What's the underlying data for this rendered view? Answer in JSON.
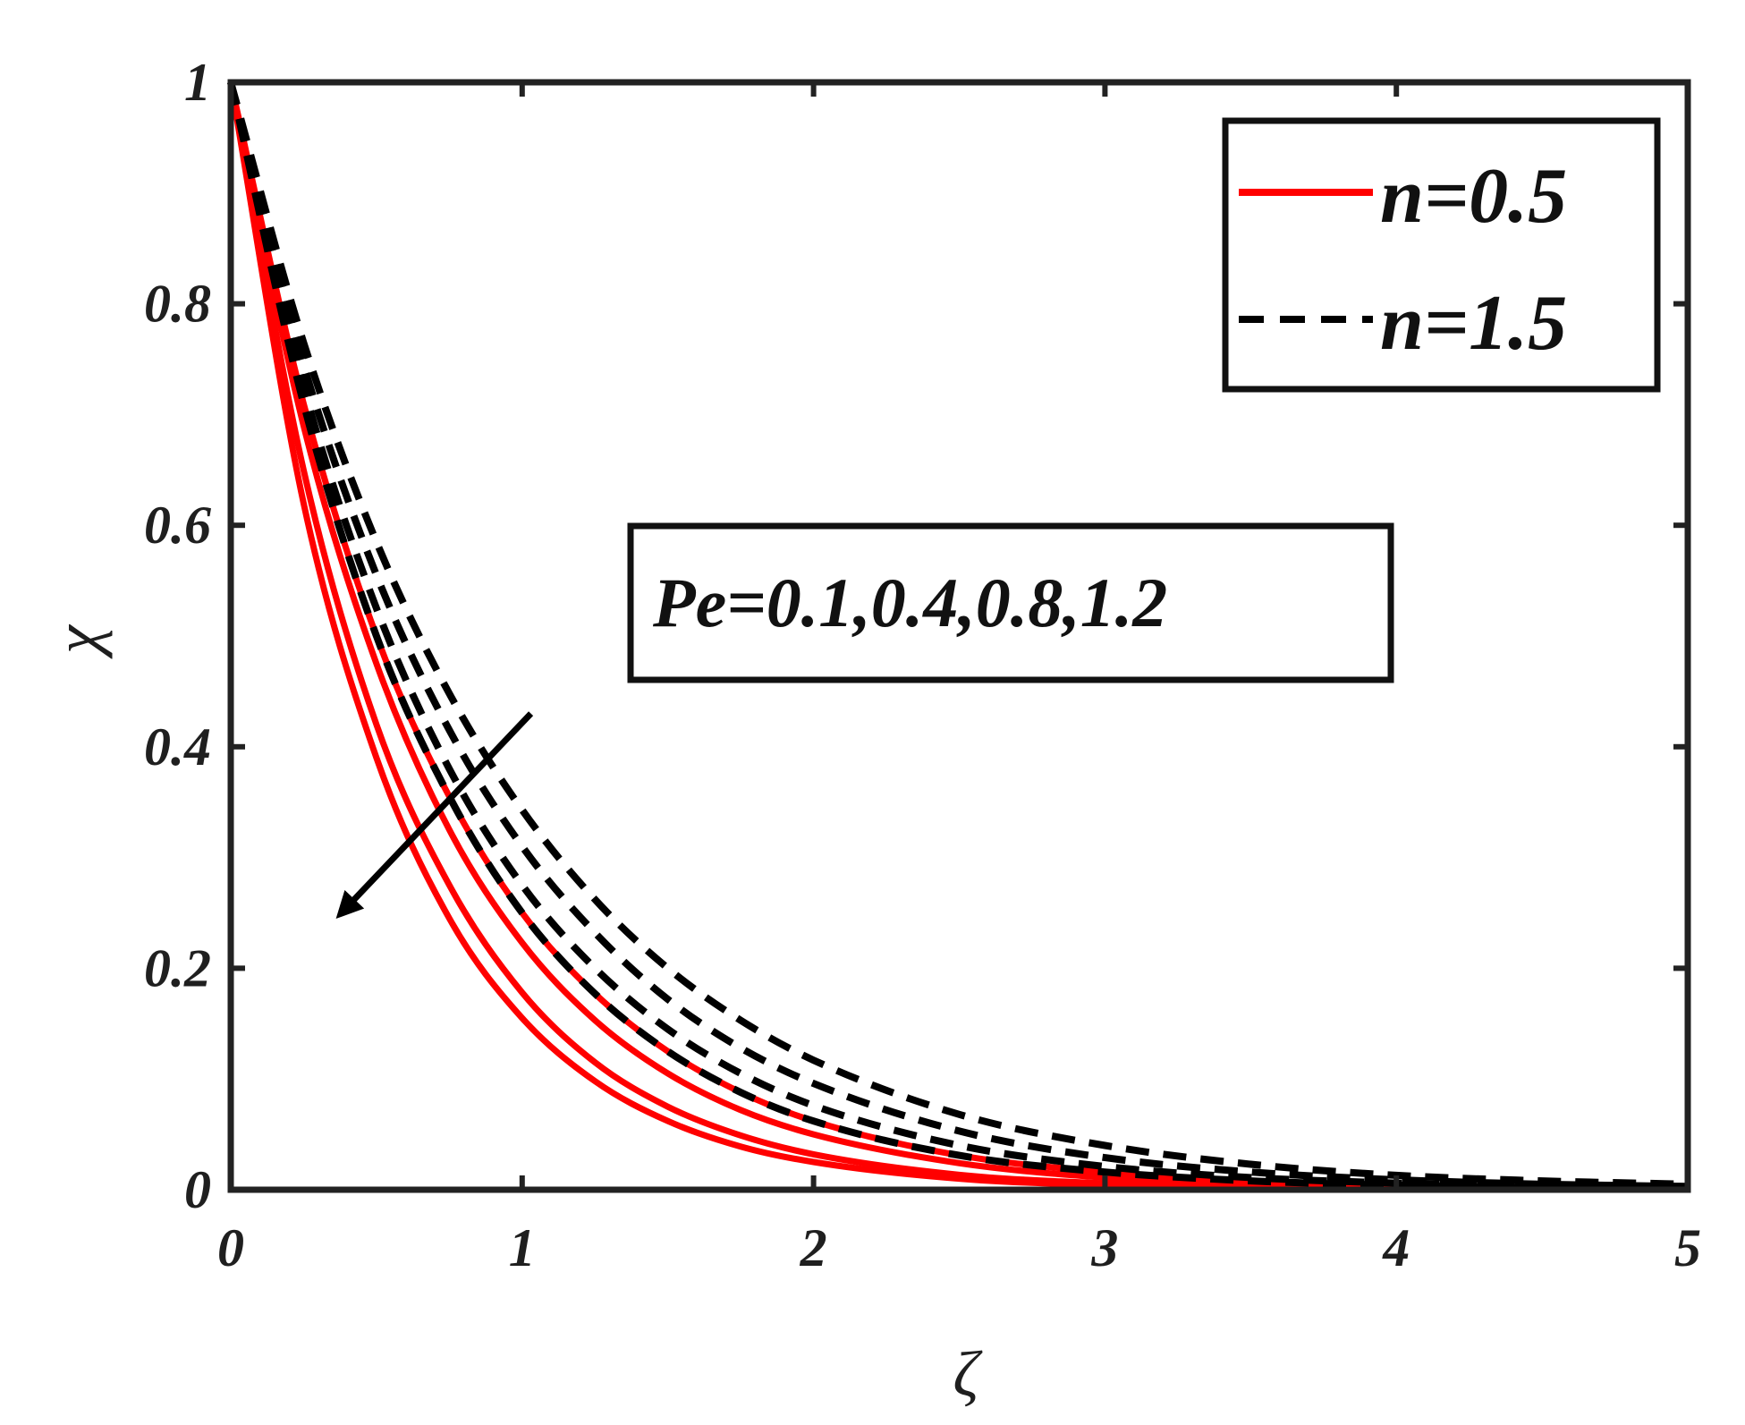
{
  "chart_data": {
    "type": "line",
    "xlabel": "ζ",
    "ylabel": "χ",
    "xlim": [
      0,
      5
    ],
    "ylim": [
      0,
      1
    ],
    "xticks": [
      "0",
      "1",
      "2",
      "3",
      "4",
      "5"
    ],
    "yticks": [
      "0",
      "0.2",
      "0.4",
      "0.6",
      "0.8",
      "1"
    ],
    "grid": false,
    "legend_position": "top-right",
    "legend": [
      {
        "name": "n=0.5",
        "color": "#ff0000",
        "style": "solid"
      },
      {
        "name": "n=1.5",
        "color": "#000000",
        "style": "dashed"
      }
    ],
    "annotation": {
      "text": "Pe=0.1,0.4,0.8,1.2",
      "arrow_from": [
        1.03,
        0.43
      ],
      "arrow_to": [
        0.38,
        0.25
      ]
    },
    "x": [
      0,
      0.25,
      0.5,
      0.75,
      1,
      1.25,
      1.5,
      1.75,
      2,
      2.5,
      3,
      3.5,
      4,
      4.5,
      5
    ],
    "series": [
      {
        "group": "n=0.5",
        "color": "#ff0000",
        "style": "solid",
        "values": [
          1.0,
          0.62,
          0.39,
          0.245,
          0.155,
          0.098,
          0.062,
          0.039,
          0.025,
          0.01,
          0.004,
          0.0016,
          0.0006,
          0.0002,
          0.0001
        ]
      },
      {
        "group": "n=0.5",
        "color": "#ff0000",
        "style": "solid",
        "values": [
          1.0,
          0.65,
          0.42,
          0.275,
          0.178,
          0.115,
          0.075,
          0.049,
          0.032,
          0.0135,
          0.0057,
          0.0024,
          0.001,
          0.0004,
          0.0002
        ]
      },
      {
        "group": "n=0.5",
        "color": "#ff0000",
        "style": "solid",
        "values": [
          1.0,
          0.69,
          0.475,
          0.325,
          0.223,
          0.153,
          0.105,
          0.072,
          0.05,
          0.024,
          0.011,
          0.005,
          0.0025,
          0.0012,
          0.0006
        ]
      },
      {
        "group": "n=0.5",
        "color": "#ff0000",
        "style": "solid",
        "values": [
          1.0,
          0.71,
          0.5,
          0.355,
          0.25,
          0.177,
          0.125,
          0.088,
          0.062,
          0.031,
          0.016,
          0.008,
          0.004,
          0.002,
          0.001
        ]
      },
      {
        "group": "n=1.5",
        "color": "#000000",
        "style": "dashed",
        "values": [
          1.0,
          0.71,
          0.5,
          0.355,
          0.25,
          0.177,
          0.125,
          0.088,
          0.062,
          0.031,
          0.016,
          0.008,
          0.004,
          0.002,
          0.001
        ]
      },
      {
        "group": "n=1.5",
        "color": "#000000",
        "style": "dashed",
        "values": [
          1.0,
          0.725,
          0.525,
          0.38,
          0.275,
          0.2,
          0.145,
          0.105,
          0.076,
          0.04,
          0.021,
          0.011,
          0.006,
          0.003,
          0.0015
        ]
      },
      {
        "group": "n=1.5",
        "color": "#000000",
        "style": "dashed",
        "values": [
          1.0,
          0.745,
          0.555,
          0.415,
          0.31,
          0.232,
          0.172,
          0.128,
          0.096,
          0.053,
          0.029,
          0.016,
          0.009,
          0.005,
          0.003
        ]
      },
      {
        "group": "n=1.5",
        "color": "#000000",
        "style": "dashed",
        "values": [
          1.0,
          0.765,
          0.585,
          0.448,
          0.343,
          0.262,
          0.2,
          0.153,
          0.117,
          0.068,
          0.04,
          0.023,
          0.013,
          0.008,
          0.005
        ]
      }
    ]
  }
}
